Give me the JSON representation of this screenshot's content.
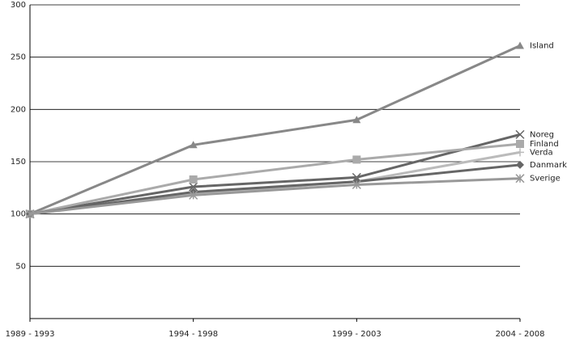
{
  "chart_data": {
    "type": "line",
    "categories": [
      "1989 - 1993",
      "1994 - 1998",
      "1999 - 2003",
      "2004 - 2008"
    ],
    "ylim": [
      0,
      300
    ],
    "yticks": [
      50,
      100,
      150,
      200,
      250,
      300
    ],
    "grid": true,
    "series": [
      {
        "name": "Island",
        "color": "#888888",
        "marker": "triangle",
        "values": [
          100,
          166,
          190,
          261
        ]
      },
      {
        "name": "Noreg",
        "color": "#666666",
        "marker": "x",
        "values": [
          100,
          126,
          135,
          176
        ]
      },
      {
        "name": "Finland",
        "color": "#aaaaaa",
        "marker": "square",
        "values": [
          100,
          133,
          152,
          167
        ]
      },
      {
        "name": "Verda",
        "color": "#bbbbbb",
        "marker": "plus",
        "values": [
          100,
          119,
          131,
          159
        ]
      },
      {
        "name": "Danmark",
        "color": "#666666",
        "marker": "diamond",
        "values": [
          100,
          121,
          131,
          147
        ]
      },
      {
        "name": "Sverige",
        "color": "#999999",
        "marker": "star",
        "values": [
          100,
          118,
          128,
          134
        ]
      }
    ]
  }
}
